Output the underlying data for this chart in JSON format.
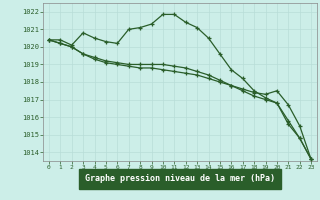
{
  "title": "Graphe pression niveau de la mer (hPa)",
  "background_color": "#cceee8",
  "grid_color": "#b8ddd8",
  "line_color": "#2a5e2a",
  "x_labels": [
    "0",
    "1",
    "2",
    "3",
    "4",
    "5",
    "6",
    "7",
    "8",
    "9",
    "10",
    "11",
    "12",
    "13",
    "14",
    "15",
    "16",
    "17",
    "18",
    "19",
    "20",
    "21",
    "22",
    "23"
  ],
  "ylim": [
    1013.5,
    1022.5
  ],
  "yticks": [
    1014,
    1015,
    1016,
    1017,
    1018,
    1019,
    1020,
    1021,
    1022
  ],
  "series": [
    [
      1020.4,
      1020.4,
      1020.1,
      1020.8,
      1020.5,
      1020.3,
      1020.2,
      1021.0,
      1021.1,
      1021.3,
      1021.85,
      1021.85,
      1021.4,
      1021.1,
      1020.5,
      1019.6,
      1018.7,
      1018.2,
      1017.5,
      1017.1,
      1016.8,
      1015.6,
      1014.8,
      1013.6
    ],
    [
      1020.4,
      1020.2,
      1020.0,
      1019.6,
      1019.3,
      1019.1,
      1019.0,
      1018.9,
      1018.8,
      1018.8,
      1018.7,
      1018.6,
      1018.5,
      1018.4,
      1018.2,
      1018.0,
      1017.8,
      1017.6,
      1017.4,
      1017.3,
      1017.5,
      1016.7,
      1015.5,
      1013.6
    ],
    [
      1020.4,
      1020.2,
      1020.0,
      1019.6,
      1019.4,
      1019.2,
      1019.1,
      1019.0,
      1019.0,
      1019.0,
      1019.0,
      1018.9,
      1018.8,
      1018.6,
      1018.4,
      1018.1,
      1017.8,
      1017.5,
      1017.2,
      1017.0,
      1016.8,
      1015.8,
      1014.8,
      1013.6
    ]
  ]
}
